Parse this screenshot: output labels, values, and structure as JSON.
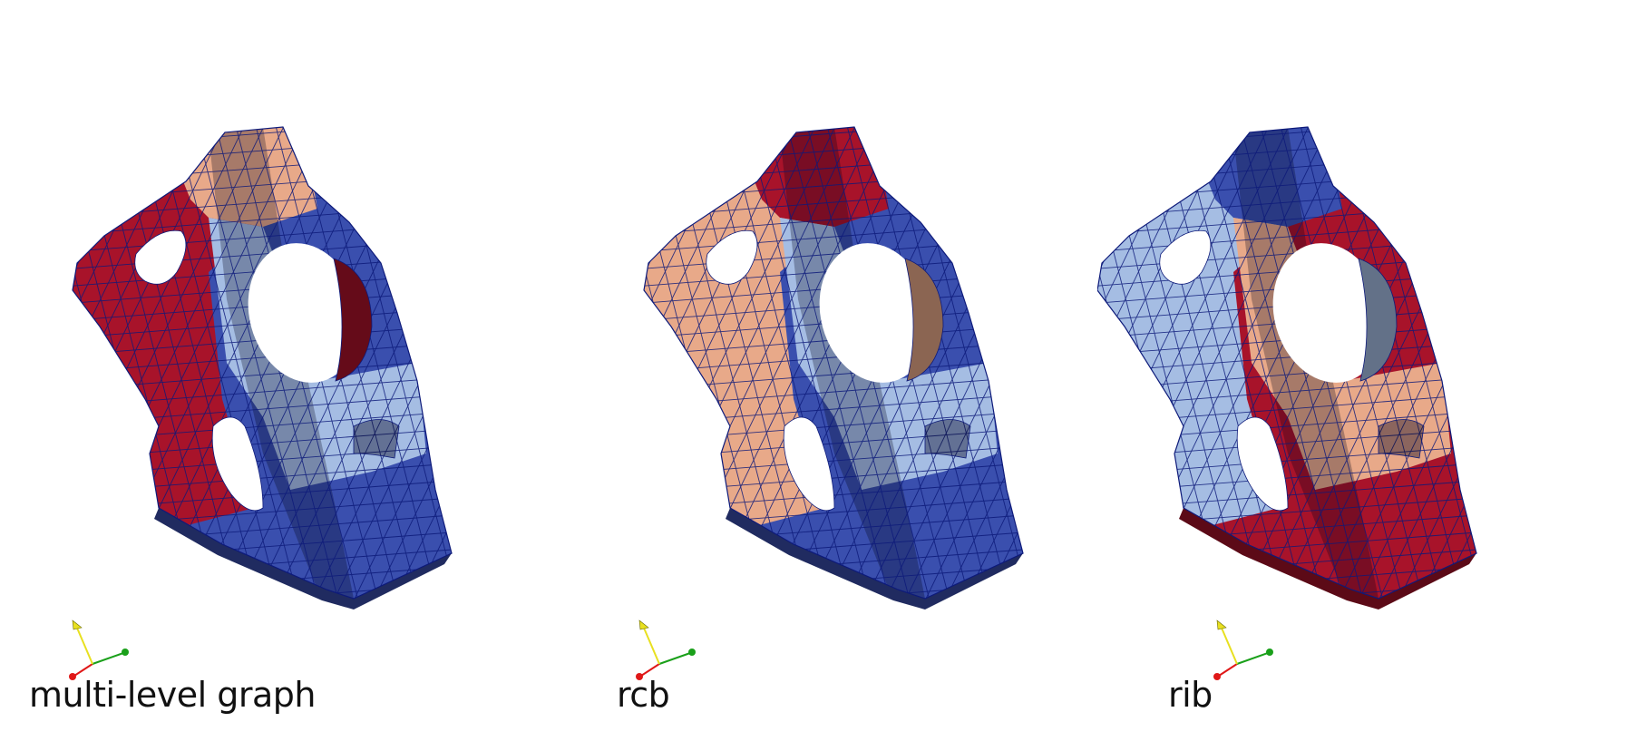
{
  "panels": [
    {
      "label": "multi-level graph",
      "scheme": [
        "#a8132a",
        "#e8a989",
        "#a5bde3",
        "#3a4fae"
      ]
    },
    {
      "label": "rcb",
      "scheme": [
        "#e8a989",
        "#a8132a",
        "#a5bde3",
        "#3a4fae"
      ]
    },
    {
      "label": "rib",
      "scheme": [
        "#a5bde3",
        "#3a4fae",
        "#e8a989",
        "#a8132a"
      ]
    }
  ],
  "colors": {
    "mesh_line": "#0d1a7a",
    "background": "#ffffff",
    "axis_x": "#e01818",
    "axis_y": "#e8e020",
    "axis_z": "#1aa01a"
  },
  "icons": [
    "orientation-axes-icon"
  ]
}
